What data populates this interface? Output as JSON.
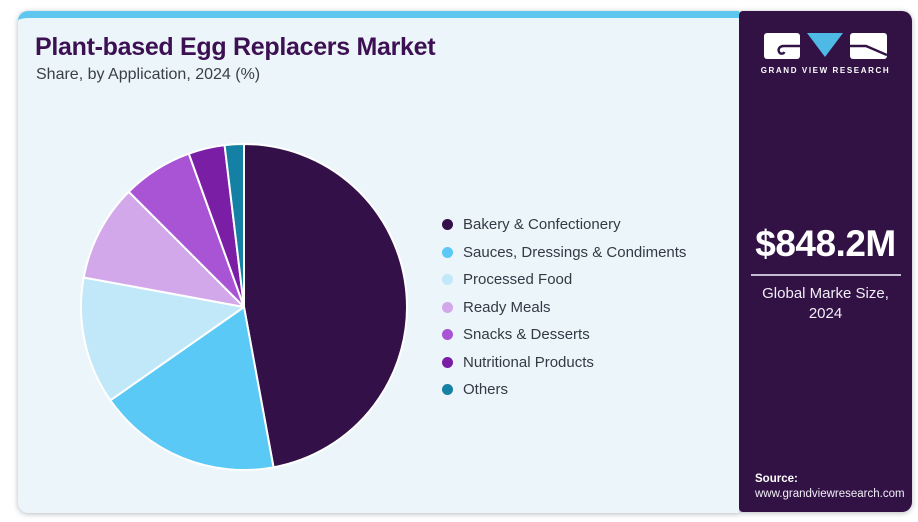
{
  "header": {
    "title": "Plant-based Egg Replacers Market",
    "subtitle": "Share, by Application, 2024 (%)"
  },
  "sidebar": {
    "logo_wordmark": "GRAND VIEW RESEARCH",
    "market_size_value": "$848.2M",
    "market_size_label_line1": "Global Marke Size,",
    "market_size_label_line2": "2024",
    "source_label": "Source:",
    "source_url": "www.grandviewresearch.com",
    "background_color": "#321244",
    "accent_color": "#4fb9e6"
  },
  "chart_data": {
    "type": "pie",
    "title": "Plant-based Egg Replacers Market Share, by Application, 2024 (%)",
    "categories": [
      "Bakery & Confectionery",
      "Sauces, Dressings & Condiments",
      "Processed Food",
      "Ready Meals",
      "Snacks & Desserts",
      "Nutritional Products",
      "Others"
    ],
    "values": [
      47.1,
      18.2,
      12.6,
      9.6,
      7.0,
      3.6,
      1.9
    ],
    "unit": "%",
    "colors": [
      "#331047",
      "#5bc9f5",
      "#c0e8f9",
      "#d2a8ea",
      "#a854d4",
      "#7a1ea6",
      "#1480a4"
    ],
    "legend_position": "right",
    "start_angle_deg": 0,
    "direction": "clockwise",
    "slice_border_color": "#ffffff"
  }
}
